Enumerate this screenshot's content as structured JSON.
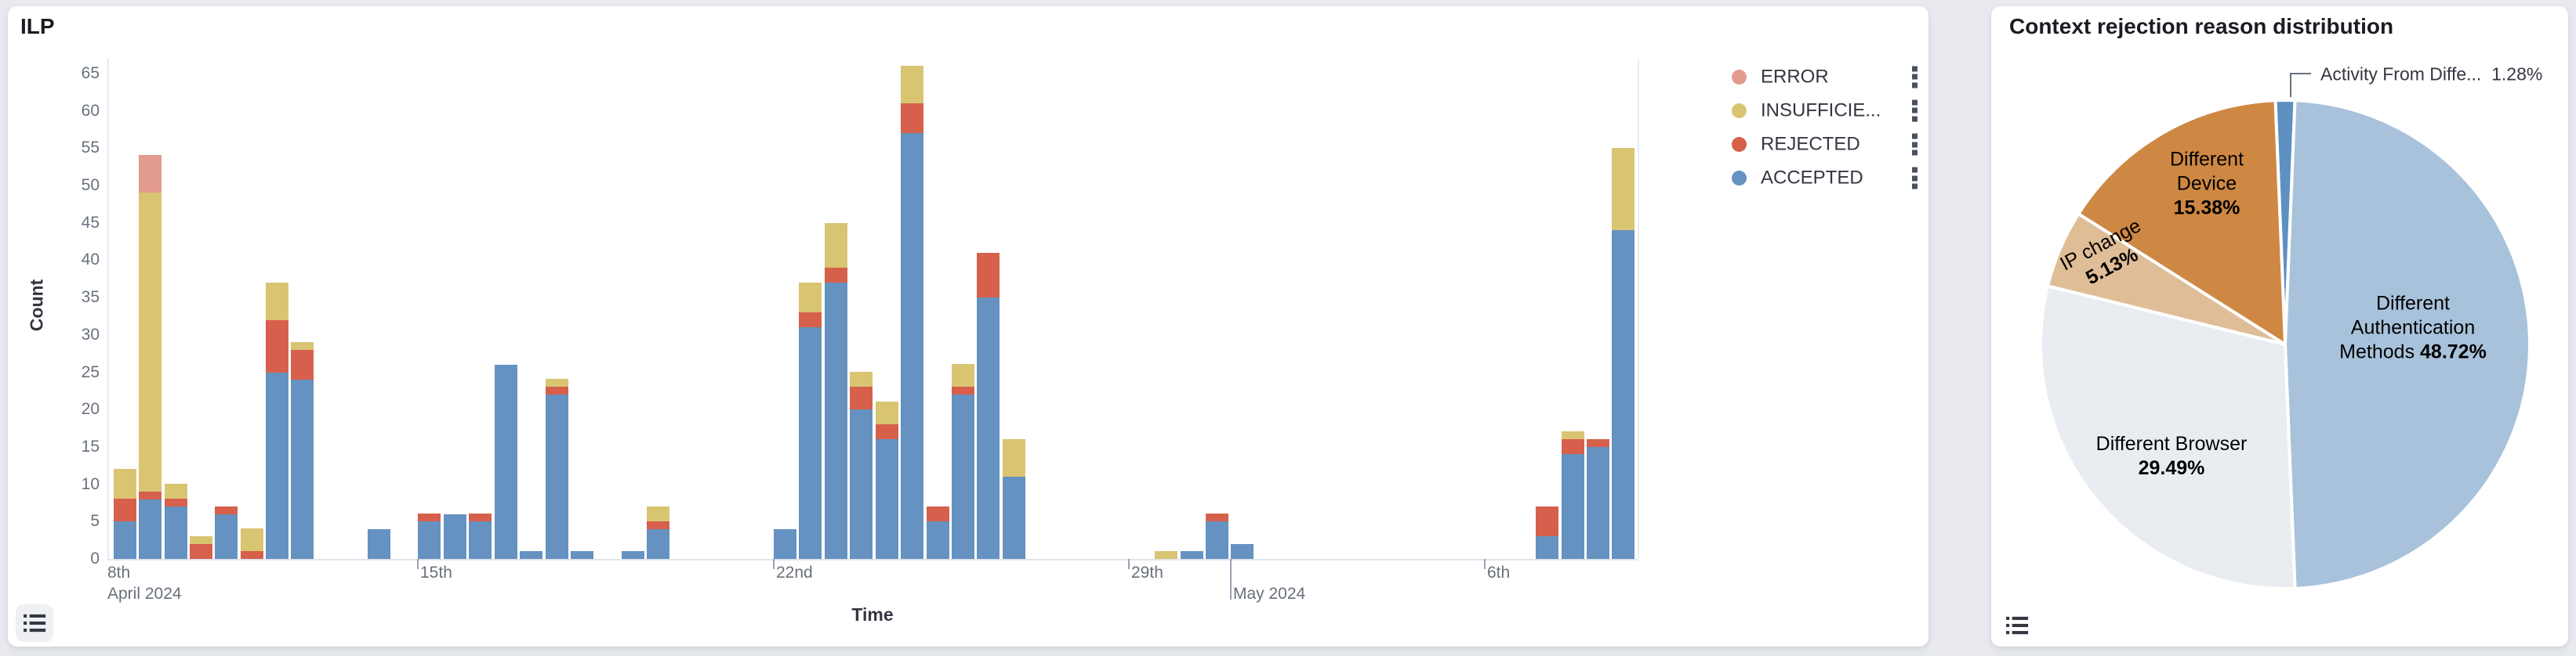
{
  "page": {
    "background": "#e8eaef",
    "card_background": "#ffffff"
  },
  "left_panel": {
    "title": "ILP",
    "y_axis": {
      "title": "Count",
      "ticks": [
        0,
        5,
        10,
        15,
        20,
        25,
        30,
        35,
        40,
        45,
        50,
        55,
        60,
        65
      ]
    },
    "x_axis": {
      "title": "Time",
      "ticks": [
        {
          "label": "8th",
          "month_label": "April 2024",
          "x": 127,
          "tick_x": -1,
          "long": false
        },
        {
          "label": "15th",
          "month_label": "",
          "x": 526,
          "tick_x": 522,
          "long": false
        },
        {
          "label": "22nd",
          "month_label": "",
          "x": 980,
          "tick_x": 976,
          "long": false
        },
        {
          "label": "29th",
          "month_label": "",
          "x": 1433,
          "tick_x": 1429,
          "long": false
        },
        {
          "label": "",
          "month_label": "May 2024",
          "x": 1563,
          "tick_x": 1559,
          "long": true
        },
        {
          "label": "6th",
          "month_label": "",
          "x": 1887,
          "tick_x": 1883,
          "long": false
        }
      ]
    },
    "legend": [
      {
        "label": "ERROR",
        "color": "#e39b8d",
        "icon": "color-dot-icon",
        "actions_icon": "boxes-vertical-icon"
      },
      {
        "label": "INSUFFICIE...",
        "color": "#d9c472",
        "icon": "color-dot-icon",
        "actions_icon": "boxes-vertical-icon"
      },
      {
        "label": "REJECTED",
        "color": "#d6604b",
        "icon": "color-dot-icon",
        "actions_icon": "boxes-vertical-icon"
      },
      {
        "label": "ACCEPTED",
        "color": "#6592c0",
        "icon": "color-dot-icon",
        "actions_icon": "boxes-vertical-icon"
      }
    ],
    "legend_toggle_icon": "list-icon"
  },
  "right_panel": {
    "title": "Context rejection reason distribution",
    "callout": {
      "label": "Activity From Diffe...",
      "pct": "1.28%"
    },
    "legend_toggle_icon": "list-icon"
  },
  "chart_data": [
    {
      "type": "bar",
      "stacked": true,
      "title": "ILP",
      "xlabel": "Time",
      "ylabel": "Count",
      "ylim": [
        0,
        65
      ],
      "y_ticks": [
        0,
        5,
        10,
        15,
        20,
        25,
        30,
        35,
        40,
        45,
        50,
        55,
        60,
        65
      ],
      "x_tick_labels": [
        "8th April 2024",
        "15th",
        "22nd",
        "29th",
        "May 2024",
        "6th"
      ],
      "bucket_interval": "12h",
      "time_range": [
        "2024-04-08",
        "2024-05-09"
      ],
      "grid": false,
      "legend_position": "right",
      "stack_order_bottom_to_top": [
        "ACCEPTED",
        "REJECTED",
        "INSUFFICIENT",
        "ERROR"
      ],
      "series": [
        {
          "key": "ERROR",
          "legend_label": "ERROR",
          "color": "#e39b8d"
        },
        {
          "key": "INSUFFICIENT",
          "legend_label": "INSUFFICIE...",
          "color": "#d9c472"
        },
        {
          "key": "REJECTED",
          "legend_label": "REJECTED",
          "color": "#d6604b"
        },
        {
          "key": "ACCEPTED",
          "legend_label": "ACCEPTED",
          "color": "#6592c0"
        }
      ],
      "buckets": [
        {
          "t": "2024-04-09 00:00",
          "k": 2,
          "ACCEPTED": 5,
          "REJECTED": 3,
          "INSUFFICIENT": 4
        },
        {
          "t": "2024-04-09 12:00",
          "k": 3,
          "ACCEPTED": 8,
          "REJECTED": 1,
          "INSUFFICIENT": 40,
          "ERROR": 5
        },
        {
          "t": "2024-04-10 00:00",
          "k": 4,
          "ACCEPTED": 7,
          "REJECTED": 1,
          "INSUFFICIENT": 2
        },
        {
          "t": "2024-04-10 12:00",
          "k": 5,
          "REJECTED": 2,
          "INSUFFICIENT": 1
        },
        {
          "t": "2024-04-11 00:00",
          "k": 6,
          "ACCEPTED": 6,
          "REJECTED": 1
        },
        {
          "t": "2024-04-11 12:00",
          "k": 7,
          "REJECTED": 1,
          "INSUFFICIENT": 3
        },
        {
          "t": "2024-04-12 00:00",
          "k": 8,
          "ACCEPTED": 25,
          "REJECTED": 7,
          "INSUFFICIENT": 5
        },
        {
          "t": "2024-04-12 12:00",
          "k": 9,
          "ACCEPTED": 24,
          "REJECTED": 4,
          "INSUFFICIENT": 1
        },
        {
          "t": "2024-04-14 00:00",
          "k": 12,
          "ACCEPTED": 4
        },
        {
          "t": "2024-04-15 00:00",
          "k": 14,
          "ACCEPTED": 5,
          "REJECTED": 1
        },
        {
          "t": "2024-04-15 12:00",
          "k": 15,
          "ACCEPTED": 6
        },
        {
          "t": "2024-04-16 00:00",
          "k": 16,
          "ACCEPTED": 5,
          "REJECTED": 1
        },
        {
          "t": "2024-04-16 12:00",
          "k": 17,
          "ACCEPTED": 26
        },
        {
          "t": "2024-04-17 00:00",
          "k": 18,
          "ACCEPTED": 1
        },
        {
          "t": "2024-04-17 12:00",
          "k": 19,
          "ACCEPTED": 22,
          "REJECTED": 1,
          "INSUFFICIENT": 1
        },
        {
          "t": "2024-04-18 00:00",
          "k": 20,
          "ACCEPTED": 1
        },
        {
          "t": "2024-04-19 00:00",
          "k": 22,
          "ACCEPTED": 1
        },
        {
          "t": "2024-04-19 12:00",
          "k": 23,
          "ACCEPTED": 4,
          "REJECTED": 1,
          "INSUFFICIENT": 2
        },
        {
          "t": "2024-04-22 00:00",
          "k": 28,
          "ACCEPTED": 4
        },
        {
          "t": "2024-04-22 12:00",
          "k": 29,
          "ACCEPTED": 31,
          "REJECTED": 2,
          "INSUFFICIENT": 4
        },
        {
          "t": "2024-04-23 00:00",
          "k": 30,
          "ACCEPTED": 37,
          "REJECTED": 2,
          "INSUFFICIENT": 6
        },
        {
          "t": "2024-04-23 12:00",
          "k": 31,
          "ACCEPTED": 20,
          "REJECTED": 3,
          "INSUFFICIENT": 2
        },
        {
          "t": "2024-04-24 00:00",
          "k": 32,
          "ACCEPTED": 16,
          "REJECTED": 2,
          "INSUFFICIENT": 3
        },
        {
          "t": "2024-04-24 12:00",
          "k": 33,
          "ACCEPTED": 57,
          "REJECTED": 4,
          "INSUFFICIENT": 5
        },
        {
          "t": "2024-04-25 00:00",
          "k": 34,
          "ACCEPTED": 5,
          "REJECTED": 2
        },
        {
          "t": "2024-04-25 12:00",
          "k": 35,
          "ACCEPTED": 22,
          "REJECTED": 1,
          "INSUFFICIENT": 3
        },
        {
          "t": "2024-04-26 00:00",
          "k": 36,
          "ACCEPTED": 35,
          "REJECTED": 6
        },
        {
          "t": "2024-04-26 12:00",
          "k": 37,
          "ACCEPTED": 11,
          "INSUFFICIENT": 5
        },
        {
          "t": "2024-04-29 12:00",
          "k": 43,
          "INSUFFICIENT": 1
        },
        {
          "t": "2024-04-30 00:00",
          "k": 44,
          "ACCEPTED": 1
        },
        {
          "t": "2024-04-30 12:00",
          "k": 45,
          "ACCEPTED": 5,
          "REJECTED": 1
        },
        {
          "t": "2024-05-01 00:00",
          "k": 46,
          "ACCEPTED": 2
        },
        {
          "t": "2024-05-07 00:00",
          "k": 58,
          "ACCEPTED": 3,
          "REJECTED": 4
        },
        {
          "t": "2024-05-07 12:00",
          "k": 59,
          "ACCEPTED": 14,
          "REJECTED": 2,
          "INSUFFICIENT": 1
        },
        {
          "t": "2024-05-08 00:00",
          "k": 60,
          "ACCEPTED": 15,
          "REJECTED": 1
        },
        {
          "t": "2024-05-08 12:00",
          "k": 61,
          "ACCEPTED": 44,
          "INSUFFICIENT": 11
        }
      ]
    },
    {
      "type": "pie",
      "title": "Context rejection reason distribution",
      "direction": "clockwise",
      "first_slice_centered_at_top": true,
      "slices": [
        {
          "label": "Activity From Diffe...",
          "pct": 1.28,
          "color": "#5e90c1",
          "label_style": "callout"
        },
        {
          "label": "Different Authentication Methods",
          "pct": 48.72,
          "color": "#a9c2db",
          "label_lines": [
            "Different",
            "Authentication",
            "Methods"
          ]
        },
        {
          "label": "Different Browser",
          "pct": 29.49,
          "color": "#e9edf2",
          "label_lines": [
            "Different Browser"
          ]
        },
        {
          "label": "IP change",
          "pct": 5.13,
          "color": "#dfbd96",
          "label_lines": [
            "IP change"
          ]
        },
        {
          "label": "Different Device",
          "pct": 15.38,
          "color": "#ce8843",
          "label_lines": [
            "Different",
            "Device"
          ]
        }
      ]
    }
  ]
}
